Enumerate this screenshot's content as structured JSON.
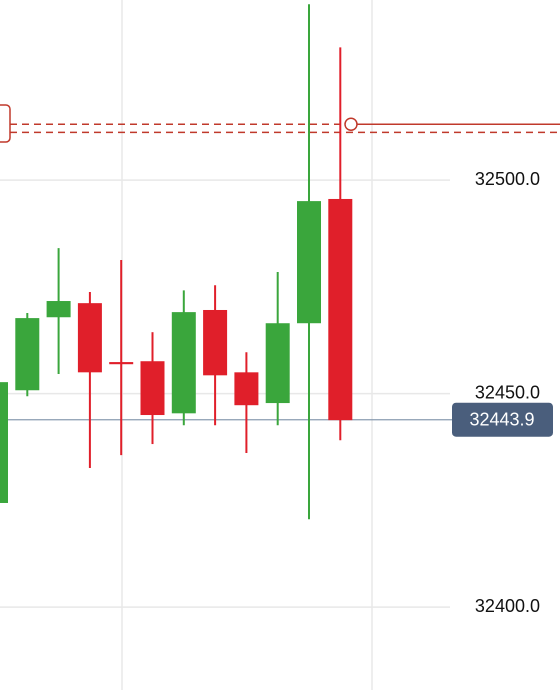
{
  "chart_data": {
    "type": "candlestick",
    "categories": [
      null,
      null,
      null,
      null,
      null,
      null,
      null,
      null,
      null,
      null,
      null,
      null
    ],
    "open": [
      32424.4,
      32450.8,
      32467.9,
      32471.2,
      32457.4,
      32457.6,
      32445.4,
      32469.6,
      32455.0,
      32447.8,
      32466.5,
      32495.6
    ],
    "high": [
      32452.7,
      32468.9,
      32484.1,
      32473.8,
      32481.3,
      32464.4,
      32474.2,
      32475.4,
      32459.7,
      32478.5,
      32541.2,
      32531.1
    ],
    "low": [
      32424.4,
      32449.4,
      32454.6,
      32432.6,
      32435.6,
      32438.2,
      32442.6,
      32442.6,
      32436.1,
      32442.6,
      32420.6,
      32439.1
    ],
    "close": [
      32452.7,
      32467.7,
      32471.7,
      32455.0,
      32456.9,
      32445.0,
      32469.1,
      32454.3,
      32447.3,
      32466.5,
      32495.1,
      32443.8
    ],
    "up_color": "#3aa63c",
    "down_color": "#e01f2a",
    "ylim": [
      32380.6,
      32542.2
    ],
    "yticks": [
      {
        "value": 32400,
        "label": "32400.0"
      },
      {
        "value": 32450,
        "label": "32450.0"
      },
      {
        "value": 32500,
        "label": "32500.0"
      }
    ],
    "grid": true,
    "last_price": 32443.9,
    "last_price_color": "#4a5e7c",
    "order_lines": [
      32513.1,
      32511.2
    ],
    "order_line_color": "#c0392b"
  }
}
